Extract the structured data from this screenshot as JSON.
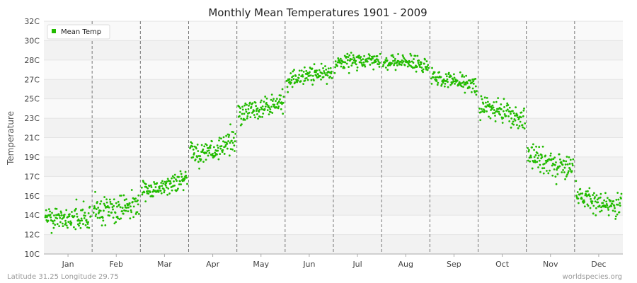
{
  "chart_data": {
    "type": "scatter",
    "title": "Monthly Mean Temperatures 1901 - 2009",
    "ylabel": "Temperature",
    "xlabel": "",
    "yticks": [
      "10C",
      "12C",
      "14C",
      "16C",
      "17C",
      "19C",
      "21C",
      "23C",
      "25C",
      "27C",
      "28C",
      "30C",
      "32C"
    ],
    "ylim": [
      10,
      32
    ],
    "categories": [
      "Jan",
      "Feb",
      "Mar",
      "Apr",
      "May",
      "Jun",
      "Jul",
      "Aug",
      "Sep",
      "Oct",
      "Nov",
      "Dec"
    ],
    "legend": {
      "label": "Mean Temp",
      "position": "top-left"
    },
    "grid": true,
    "series": [
      {
        "name": "Mean Temp",
        "color": "#22bb00",
        "monthly_ranges": [
          {
            "month": "Jan",
            "min": 11.0,
            "max": 15.8,
            "typical": 13.3
          },
          {
            "month": "Feb",
            "min": 11.0,
            "max": 16.8,
            "typical": 14.2
          },
          {
            "month": "Mar",
            "min": 14.2,
            "max": 18.0,
            "typical": 16.4
          },
          {
            "month": "Apr",
            "min": 17.6,
            "max": 22.4,
            "typical": 19.9
          },
          {
            "month": "May",
            "min": 21.8,
            "max": 26.8,
            "typical": 23.8
          },
          {
            "month": "Jun",
            "min": 25.3,
            "max": 29.0,
            "typical": 26.9
          },
          {
            "month": "Jul",
            "min": 27.1,
            "max": 30.3,
            "typical": 28.3
          },
          {
            "month": "Aug",
            "min": 26.9,
            "max": 30.0,
            "typical": 28.1
          },
          {
            "month": "Sep",
            "min": 24.8,
            "max": 28.0,
            "typical": 26.4
          },
          {
            "month": "Oct",
            "min": 21.2,
            "max": 25.9,
            "typical": 23.4
          },
          {
            "month": "Nov",
            "min": 16.6,
            "max": 21.7,
            "typical": 18.6
          },
          {
            "month": "Dec",
            "min": 12.2,
            "max": 16.9,
            "typical": 14.9
          }
        ]
      }
    ]
  },
  "footer": {
    "location": "Latitude 31.25 Longitude 29.75",
    "source": "worldspecies.org"
  }
}
